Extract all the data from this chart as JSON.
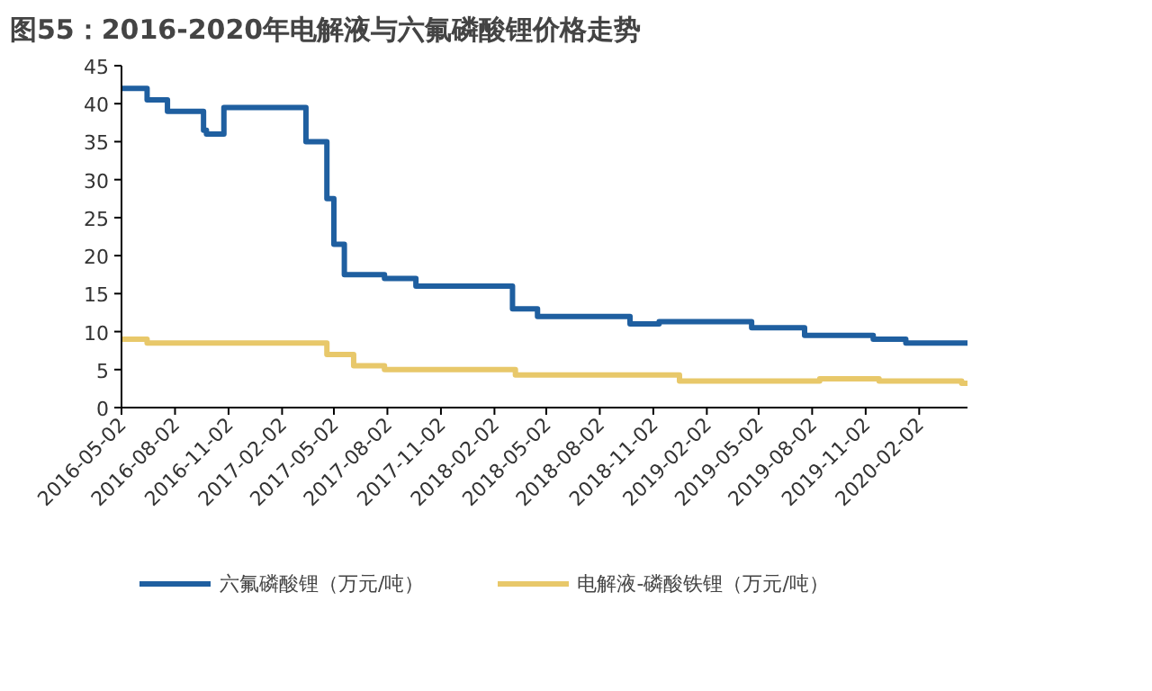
{
  "chart_data": {
    "type": "step",
    "title": "图55：2016-2020年电解液与六氟磷酸锂价格走势",
    "x": [
      "2016-05-02",
      "2016-06-15",
      "2016-07-20",
      "2016-09-20",
      "2016-09-25",
      "2016-10-25",
      "2017-03-15",
      "2017-04-20",
      "2017-05-02",
      "2017-05-20",
      "2017-07-28",
      "2017-09-20",
      "2018-03-05",
      "2018-04-17",
      "2018-09-23",
      "2018-11-12",
      "2019-04-20",
      "2019-07-20",
      "2019-11-15",
      "2020-01-10",
      "2020-04-25"
    ],
    "series": [
      {
        "name": "六氟磷酸锂（万元/吨）",
        "color": "#1f5fa0",
        "values": [
          42,
          40.5,
          39,
          36.5,
          36,
          39.5,
          35,
          27.5,
          21.5,
          17.5,
          17,
          16,
          13,
          12,
          11,
          11.3,
          10.5,
          9.5,
          9,
          8.5,
          8.5
        ]
      },
      {
        "name": "电解液-磷酸铁锂（万元/吨）",
        "color": "#e8c86a",
        "x": [
          "2016-05-02",
          "2016-06-15",
          "2017-04-20",
          "2017-06-05",
          "2017-07-28",
          "2018-03-10",
          "2018-12-17",
          "2019-08-15",
          "2019-11-25",
          "2020-04-15",
          "2020-04-25"
        ],
        "values": [
          9,
          8.5,
          7,
          5.5,
          5,
          4.3,
          3.5,
          3.8,
          3.5,
          3.2,
          3.2
        ]
      }
    ],
    "xlim": [
      "2016-05-02",
      "2020-04-25"
    ],
    "xticks": [
      "2016-05-02",
      "2016-08-02",
      "2016-11-02",
      "2017-02-02",
      "2017-05-02",
      "2017-08-02",
      "2017-11-02",
      "2018-02-02",
      "2018-05-02",
      "2018-08-02",
      "2018-11-02",
      "2019-02-02",
      "2019-05-02",
      "2019-08-02",
      "2019-11-02",
      "2020-02-02"
    ],
    "ylim": [
      0,
      45
    ],
    "yticks": [
      0,
      5,
      10,
      15,
      20,
      25,
      30,
      35,
      40,
      45
    ],
    "legend": "bottom",
    "line_style": "solid"
  }
}
